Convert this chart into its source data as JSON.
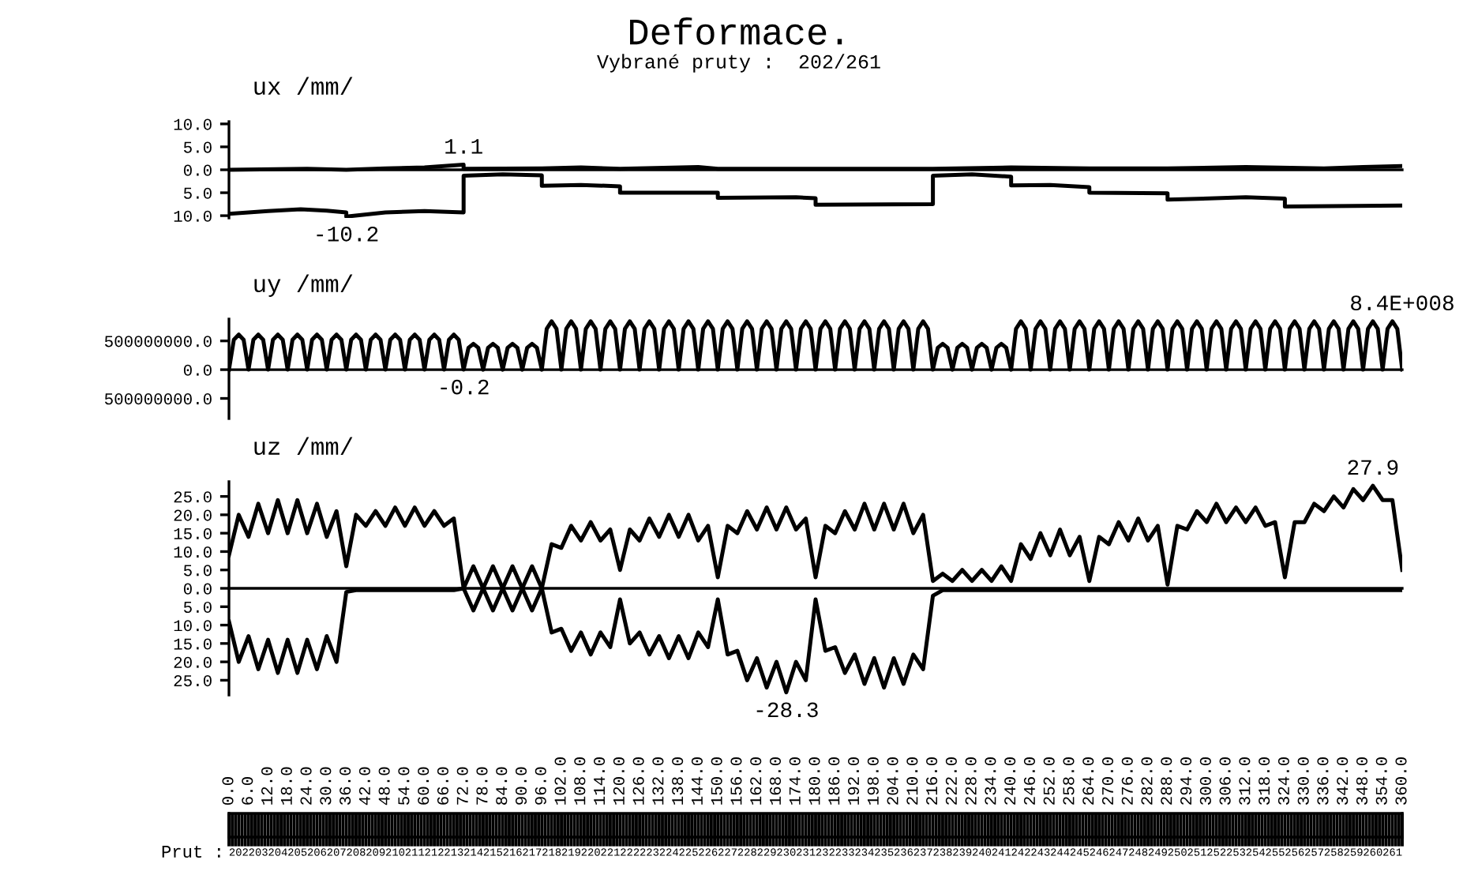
{
  "chart_data": [
    {
      "type": "line",
      "title": "Deformace.",
      "subtitle": "Vybrané pruty :  202/261",
      "ylabel": "ux /mm/",
      "xlim": [
        0,
        360
      ],
      "ylim": [
        -10.5,
        10.5
      ],
      "yticks": [
        {
          "value": 10,
          "label": "10.0"
        },
        {
          "value": 5,
          "label": "5.0"
        },
        {
          "value": 0,
          "label": "0.0"
        },
        {
          "value": -5,
          "label": "5.0"
        },
        {
          "value": -10,
          "label": "10.0"
        }
      ],
      "tick_labels": "y",
      "series": [
        {
          "color": "#000000",
          "x": [
            0,
            24,
            36,
            48,
            60,
            66,
            72,
            72,
            96,
            108,
            120,
            144,
            150,
            180,
            216,
            240,
            264,
            288,
            312,
            336,
            348,
            360
          ],
          "values": [
            0,
            0.2,
            0,
            0.3,
            0.5,
            0.8,
            1.1,
            0.2,
            0.3,
            0.5,
            0.2,
            0.6,
            0.2,
            0.2,
            0.2,
            0.5,
            0.3,
            0.3,
            0.6,
            0.3,
            0.6,
            0.8
          ]
        },
        {
          "color": "#000000",
          "x": [
            0,
            12,
            22,
            30,
            36,
            36,
            48,
            60,
            72,
            72,
            84,
            96,
            96,
            108,
            120,
            120,
            150,
            150,
            174,
            180,
            180,
            216,
            216,
            228,
            240,
            240,
            252,
            264,
            264,
            288,
            288,
            312,
            324,
            324,
            360
          ],
          "values": [
            -9.6,
            -9.0,
            -8.6,
            -8.9,
            -9.3,
            -10.2,
            -9.3,
            -9.0,
            -9.3,
            -1.3,
            -1.0,
            -1.2,
            -3.5,
            -3.3,
            -3.6,
            -5.0,
            -5.0,
            -6.1,
            -6.0,
            -6.2,
            -7.6,
            -7.5,
            -1.3,
            -1.0,
            -1.5,
            -3.4,
            -3.3,
            -3.8,
            -5.0,
            -5.1,
            -6.5,
            -6.0,
            -6.3,
            -8.0,
            -7.8
          ]
        }
      ],
      "annotations": [
        {
          "text": "1.1",
          "x": 72,
          "y": 1.1
        },
        {
          "text": "-10.2",
          "x": 36,
          "y": -10.2
        }
      ]
    },
    {
      "type": "line",
      "ylabel": "uy /mm/",
      "xlim": [
        0,
        360
      ],
      "ylim": [
        -850000000,
        880000000
      ],
      "yticks": [
        {
          "value": 500000000,
          "label": "500000000.0"
        },
        {
          "value": 0,
          "label": "0.0"
        },
        {
          "value": -500000000,
          "label": "500000000.0"
        }
      ],
      "tick_labels": "y",
      "series": [
        {
          "color": "#000000",
          "x": [
            0,
            1.5,
            3,
            4.5,
            6,
            7.5,
            9,
            10.5,
            12,
            13.5,
            15,
            16.5,
            18,
            19.5,
            21,
            22.5,
            24,
            25.5,
            27,
            28.5,
            30,
            31.5,
            33,
            34.5,
            36,
            37.5,
            39,
            40.5,
            42,
            43.5,
            45,
            46.5,
            48,
            49.5,
            51,
            52.5,
            54,
            55.5,
            57,
            58.5,
            60,
            61.5,
            63,
            64.5,
            66,
            67.5,
            69,
            70.5,
            72,
            73.5,
            75,
            76.5,
            78,
            79.5,
            81,
            82.5,
            84,
            85.5,
            87,
            88.5,
            90,
            91.5,
            93,
            94.5,
            96,
            97.5,
            99,
            100.5,
            102,
            103.5,
            105,
            106.5,
            108,
            109.5,
            111,
            112.5,
            114,
            115.5,
            117,
            118.5,
            120,
            121.5,
            123,
            124.5,
            126,
            127.5,
            129,
            130.5,
            132,
            133.5,
            135,
            136.5,
            138,
            139.5,
            141,
            142.5,
            144,
            145.5,
            147,
            148.5,
            150,
            151.5,
            153,
            154.5,
            156,
            157.5,
            159,
            160.5,
            162,
            163.5,
            165,
            166.5,
            168,
            169.5,
            171,
            172.5,
            174,
            175.5,
            177,
            178.5,
            180,
            181.5,
            183,
            184.5,
            186,
            187.5,
            189,
            190.5,
            192,
            193.5,
            195,
            196.5,
            198,
            199.5,
            201,
            202.5,
            204,
            205.5,
            207,
            208.5,
            210,
            211.5,
            213,
            214.5,
            216,
            217.5,
            219,
            220.5,
            222,
            223.5,
            225,
            226.5,
            228,
            229.5,
            231,
            232.5,
            234,
            235.5,
            237,
            238.5,
            240,
            241.5,
            243,
            244.5,
            246,
            247.5,
            249,
            250.5,
            252,
            253.5,
            255,
            256.5,
            258,
            259.5,
            261,
            262.5,
            264,
            265.5,
            267,
            268.5,
            270,
            271.5,
            273,
            274.5,
            276,
            277.5,
            279,
            280.5,
            282,
            283.5,
            285,
            286.5,
            288,
            289.5,
            291,
            292.5,
            294,
            295.5,
            297,
            298.5,
            300,
            301.5,
            303,
            304.5,
            306,
            307.5,
            309,
            310.5,
            312,
            313.5,
            315,
            316.5,
            318,
            319.5,
            321,
            322.5,
            324,
            325.5,
            327,
            328.5,
            330,
            331.5,
            333,
            334.5,
            336,
            337.5,
            339,
            340.5,
            342,
            343.5,
            345,
            346.5,
            348,
            349.5,
            351,
            352.5,
            354,
            355.5,
            357,
            358.5,
            360
          ],
          "values": [
            0,
            520000000.0,
            610000000.0,
            520000000.0,
            0,
            520000000.0,
            610000000.0,
            520000000.0,
            0,
            520000000.0,
            610000000.0,
            520000000.0,
            0,
            520000000.0,
            610000000.0,
            520000000.0,
            0,
            520000000.0,
            610000000.0,
            520000000.0,
            0,
            520000000.0,
            610000000.0,
            520000000.0,
            0,
            520000000.0,
            610000000.0,
            520000000.0,
            0,
            520000000.0,
            610000000.0,
            520000000.0,
            0,
            520000000.0,
            610000000.0,
            520000000.0,
            0,
            520000000.0,
            610000000.0,
            520000000.0,
            0,
            520000000.0,
            610000000.0,
            520000000.0,
            0,
            520000000.0,
            610000000.0,
            520000000.0,
            0,
            380000000.0,
            450000000.0,
            380000000.0,
            0,
            380000000.0,
            450000000.0,
            380000000.0,
            0,
            380000000.0,
            450000000.0,
            380000000.0,
            0,
            380000000.0,
            450000000.0,
            380000000.0,
            0,
            710000000.0,
            840000000.0,
            710000000.0,
            0,
            710000000.0,
            840000000.0,
            710000000.0,
            0,
            710000000.0,
            840000000.0,
            710000000.0,
            0,
            710000000.0,
            840000000.0,
            710000000.0,
            0,
            710000000.0,
            840000000.0,
            710000000.0,
            0,
            710000000.0,
            840000000.0,
            710000000.0,
            0,
            710000000.0,
            840000000.0,
            710000000.0,
            0,
            710000000.0,
            840000000.0,
            710000000.0,
            0,
            710000000.0,
            840000000.0,
            710000000.0,
            0,
            710000000.0,
            840000000.0,
            710000000.0,
            0,
            710000000.0,
            840000000.0,
            710000000.0,
            0,
            710000000.0,
            840000000.0,
            710000000.0,
            0,
            710000000.0,
            840000000.0,
            710000000.0,
            0,
            710000000.0,
            840000000.0,
            710000000.0,
            0,
            710000000.0,
            840000000.0,
            710000000.0,
            0,
            710000000.0,
            840000000.0,
            710000000.0,
            0,
            710000000.0,
            840000000.0,
            710000000.0,
            0,
            710000000.0,
            840000000.0,
            710000000.0,
            0,
            710000000.0,
            840000000.0,
            710000000.0,
            0,
            710000000.0,
            840000000.0,
            710000000.0,
            0,
            380000000.0,
            450000000.0,
            380000000.0,
            0,
            380000000.0,
            450000000.0,
            380000000.0,
            0,
            380000000.0,
            450000000.0,
            380000000.0,
            0,
            380000000.0,
            450000000.0,
            380000000.0,
            0,
            710000000.0,
            840000000.0,
            710000000.0,
            0,
            710000000.0,
            840000000.0,
            710000000.0,
            0,
            710000000.0,
            840000000.0,
            710000000.0,
            0,
            710000000.0,
            840000000.0,
            710000000.0,
            0,
            710000000.0,
            840000000.0,
            710000000.0,
            0,
            710000000.0,
            840000000.0,
            710000000.0,
            0,
            710000000.0,
            840000000.0,
            710000000.0,
            0,
            710000000.0,
            840000000.0,
            710000000.0,
            0,
            710000000.0,
            840000000.0,
            710000000.0,
            0,
            710000000.0,
            840000000.0,
            710000000.0,
            0,
            710000000.0,
            840000000.0,
            710000000.0,
            0,
            710000000.0,
            840000000.0,
            710000000.0,
            0,
            710000000.0,
            840000000.0,
            710000000.0,
            0,
            710000000.0,
            840000000.0,
            710000000.0,
            0,
            710000000.0,
            840000000.0,
            710000000.0,
            0,
            710000000.0,
            840000000.0,
            710000000.0,
            0,
            710000000.0,
            840000000.0,
            710000000.0,
            0,
            710000000.0,
            840000000.0,
            710000000.0,
            0,
            710000000.0,
            840000000.0,
            710000000.0,
            0,
            710000000.0,
            840000000.0,
            710000000.0,
            0
          ]
        }
      ],
      "annotations": [
        {
          "text": "-0.2",
          "x": 72,
          "y": -0.2
        },
        {
          "text": "8.4E+008",
          "x": 360,
          "y": 840000000
        }
      ]
    },
    {
      "type": "line",
      "ylabel": "uz /mm/",
      "xlim": [
        0,
        360
      ],
      "ylim": [
        -29,
        29
      ],
      "yticks": [
        {
          "value": 25,
          "label": "25.0"
        },
        {
          "value": 20,
          "label": "20.0"
        },
        {
          "value": 15,
          "label": "15.0"
        },
        {
          "value": 10,
          "label": "10.0"
        },
        {
          "value": 5,
          "label": "5.0"
        },
        {
          "value": 0,
          "label": "0.0"
        },
        {
          "value": -5,
          "label": "5.0"
        },
        {
          "value": -10,
          "label": "10.0"
        },
        {
          "value": -15,
          "label": "15.0"
        },
        {
          "value": -20,
          "label": "20.0"
        },
        {
          "value": -25,
          "label": "25.0"
        }
      ],
      "xticks": [
        {
          "value": 0,
          "label": "0.0"
        },
        {
          "value": 6,
          "label": "6.0"
        },
        {
          "value": 12,
          "label": "12.0"
        },
        {
          "value": 18,
          "label": "18.0"
        },
        {
          "value": 24,
          "label": "24.0"
        },
        {
          "value": 30,
          "label": "30.0"
        },
        {
          "value": 36,
          "label": "36.0"
        },
        {
          "value": 42,
          "label": "42.0"
        },
        {
          "value": 48,
          "label": "48.0"
        },
        {
          "value": 54,
          "label": "54.0"
        },
        {
          "value": 60,
          "label": "60.0"
        },
        {
          "value": 66,
          "label": "66.0"
        },
        {
          "value": 72,
          "label": "72.0"
        },
        {
          "value": 78,
          "label": "78.0"
        },
        {
          "value": 84,
          "label": "84.0"
        },
        {
          "value": 90,
          "label": "90.0"
        },
        {
          "value": 96,
          "label": "96.0"
        },
        {
          "value": 102,
          "label": "102.0"
        },
        {
          "value": 108,
          "label": "108.0"
        },
        {
          "value": 114,
          "label": "114.0"
        },
        {
          "value": 120,
          "label": "120.0"
        },
        {
          "value": 126,
          "label": "126.0"
        },
        {
          "value": 132,
          "label": "132.0"
        },
        {
          "value": 138,
          "label": "138.0"
        },
        {
          "value": 144,
          "label": "144.0"
        },
        {
          "value": 150,
          "label": "150.0"
        },
        {
          "value": 156,
          "label": "156.0"
        },
        {
          "value": 162,
          "label": "162.0"
        },
        {
          "value": 168,
          "label": "168.0"
        },
        {
          "value": 174,
          "label": "174.0"
        },
        {
          "value": 180,
          "label": "180.0"
        },
        {
          "value": 186,
          "label": "186.0"
        },
        {
          "value": 192,
          "label": "192.0"
        },
        {
          "value": 198,
          "label": "198.0"
        },
        {
          "value": 204,
          "label": "204.0"
        },
        {
          "value": 210,
          "label": "210.0"
        },
        {
          "value": 216,
          "label": "216.0"
        },
        {
          "value": 222,
          "label": "222.0"
        },
        {
          "value": 228,
          "label": "228.0"
        },
        {
          "value": 234,
          "label": "234.0"
        },
        {
          "value": 240,
          "label": "240.0"
        },
        {
          "value": 246,
          "label": "246.0"
        },
        {
          "value": 252,
          "label": "252.0"
        },
        {
          "value": 258,
          "label": "258.0"
        },
        {
          "value": 264,
          "label": "264.0"
        },
        {
          "value": 270,
          "label": "270.0"
        },
        {
          "value": 276,
          "label": "276.0"
        },
        {
          "value": 282,
          "label": "282.0"
        },
        {
          "value": 288,
          "label": "288.0"
        },
        {
          "value": 294,
          "label": "294.0"
        },
        {
          "value": 300,
          "label": "300.0"
        },
        {
          "value": 306,
          "label": "306.0"
        },
        {
          "value": 312,
          "label": "312.0"
        },
        {
          "value": 318,
          "label": "318.0"
        },
        {
          "value": 324,
          "label": "324.0"
        },
        {
          "value": 330,
          "label": "330.0"
        },
        {
          "value": 336,
          "label": "336.0"
        },
        {
          "value": 342,
          "label": "342.0"
        },
        {
          "value": 348,
          "label": "348.0"
        },
        {
          "value": 354,
          "label": "354.0"
        },
        {
          "value": 360,
          "label": "360.0"
        }
      ],
      "xlabel": "Prut :",
      "series": [
        {
          "color": "#000000",
          "x": [
            0,
            3,
            6,
            9,
            12,
            15,
            18,
            21,
            24,
            27,
            30,
            33,
            36,
            39,
            42,
            45,
            48,
            51,
            54,
            57,
            60,
            63,
            66,
            69,
            72,
            75,
            78,
            81,
            84,
            87,
            90,
            93,
            96,
            99,
            102,
            105,
            108,
            111,
            114,
            117,
            120,
            123,
            126,
            129,
            132,
            135,
            138,
            141,
            144,
            147,
            150,
            153,
            156,
            159,
            162,
            165,
            168,
            171,
            174,
            177,
            180,
            183,
            186,
            189,
            192,
            195,
            198,
            201,
            204,
            207,
            210,
            213,
            216,
            219,
            222,
            225,
            228,
            231,
            234,
            237,
            240,
            243,
            246,
            249,
            252,
            255,
            258,
            261,
            264,
            267,
            270,
            273,
            276,
            279,
            282,
            285,
            288,
            291,
            294,
            297,
            300,
            303,
            306,
            309,
            312,
            315,
            318,
            321,
            324,
            327,
            330,
            333,
            336,
            339,
            342,
            345,
            348,
            351,
            354,
            357,
            360
          ],
          "values": [
            9,
            20,
            14,
            23,
            15,
            24,
            15,
            24,
            15,
            23,
            14,
            21,
            6,
            20,
            17,
            21,
            17,
            22,
            17,
            22,
            17,
            21,
            17,
            19,
            0,
            6,
            0,
            -6,
            0,
            6,
            0,
            -6,
            0,
            12,
            11,
            17,
            13,
            18,
            13,
            16,
            5,
            16,
            13,
            19,
            14,
            20,
            14,
            20,
            13,
            17,
            3,
            17,
            15,
            21,
            16,
            22,
            16,
            22,
            16,
            19,
            3,
            17,
            15,
            21,
            16,
            23,
            16,
            23,
            16,
            23,
            15,
            20,
            2,
            4,
            2,
            5,
            2,
            5,
            2,
            6,
            2,
            12,
            8,
            15,
            9,
            16,
            9,
            14,
            2,
            14,
            12,
            18,
            13,
            19,
            13,
            17,
            1,
            17,
            16,
            21,
            18,
            23,
            18,
            22,
            18,
            22,
            17,
            18,
            3,
            18,
            18,
            23,
            21,
            25,
            22,
            27,
            24,
            27.9,
            24,
            24,
            5
          ]
        },
        {
          "color": "#000000",
          "x": [
            0,
            3,
            6,
            9,
            12,
            15,
            18,
            21,
            24,
            27,
            30,
            33,
            36,
            39,
            42,
            45,
            48,
            51,
            54,
            57,
            60,
            63,
            66,
            69,
            72,
            75,
            78,
            81,
            84,
            87,
            90,
            93,
            96,
            99,
            102,
            105,
            108,
            111,
            114,
            117,
            120,
            123,
            126,
            129,
            132,
            135,
            138,
            141,
            144,
            147,
            150,
            153,
            156,
            159,
            162,
            165,
            168,
            171,
            174,
            177,
            180,
            183,
            186,
            189,
            192,
            195,
            198,
            201,
            204,
            207,
            210,
            213,
            216,
            219,
            222,
            225,
            228,
            231,
            234,
            237,
            240,
            243,
            246,
            249,
            252,
            255,
            258,
            261,
            264,
            267,
            270,
            273,
            276,
            279,
            282,
            285,
            288,
            291,
            294,
            297,
            300,
            303,
            306,
            309,
            312,
            315,
            318,
            321,
            324,
            327,
            330,
            333,
            336,
            339,
            342,
            345,
            348,
            351,
            354,
            357,
            360
          ],
          "values": [
            -9,
            -20,
            -13,
            -22,
            -14,
            -23,
            -14,
            -23,
            -14,
            -22,
            -13,
            -20,
            -1,
            -0.5,
            -0.5,
            -0.5,
            -0.5,
            -0.5,
            -0.5,
            -0.5,
            -0.5,
            -0.5,
            -0.5,
            -0.5,
            0,
            -6,
            0,
            6,
            0,
            -6,
            0,
            6,
            0,
            -12,
            -11,
            -17,
            -12,
            -18,
            -12,
            -16,
            -3,
            -15,
            -12,
            -18,
            -13,
            -19,
            -13,
            -19,
            -12,
            -16,
            -3,
            -18,
            -17,
            -25,
            -19,
            -27,
            -20,
            -28.3,
            -20,
            -25,
            -3,
            -17,
            -16,
            -23,
            -18,
            -26,
            -19,
            -27,
            -19,
            -26,
            -18,
            -22,
            -2,
            -0.5,
            -0.5,
            -0.5,
            -0.5,
            -0.5,
            -0.5,
            -0.5,
            -0.5,
            -0.5,
            -0.5,
            -0.5,
            -0.5,
            -0.5,
            -0.5,
            -0.5,
            -0.5,
            -0.5,
            -0.5,
            -0.5,
            -0.5,
            -0.5,
            -0.5,
            -0.5,
            -0.5,
            -0.5,
            -0.5,
            -0.5,
            -0.5,
            -0.5,
            -0.5,
            -0.5,
            -0.5,
            -0.5,
            -0.5,
            -0.5,
            -0.5,
            -0.5,
            -0.5,
            -0.5,
            -0.5,
            -0.5,
            -0.5,
            -0.5,
            -0.5,
            -0.5,
            -0.5,
            -0.5,
            -0.5
          ]
        }
      ],
      "annotations": [
        {
          "text": "27.9",
          "x": 351,
          "y": 27.9
        },
        {
          "text": "-28.3",
          "x": 171,
          "y": -28.3
        },
        "202",
        "203",
        "204",
        "205",
        "206",
        "207",
        "208",
        "209",
        "210",
        "211",
        "212",
        "213",
        "214",
        "215",
        "216",
        "217",
        "218",
        "219",
        "220",
        "221",
        "222",
        "223",
        "224",
        "225",
        "226",
        "227",
        "228",
        "229",
        "230",
        "231",
        "232",
        "233",
        "234",
        "235",
        "236",
        "237",
        "238",
        "239",
        "240",
        "241",
        "242",
        "243",
        "244",
        "245",
        "246",
        "247",
        "248",
        "249",
        "250",
        "251",
        "252",
        "253",
        "254",
        "255",
        "256",
        "257",
        "258",
        "259",
        "260",
        "261"
      ]
    }
  ]
}
